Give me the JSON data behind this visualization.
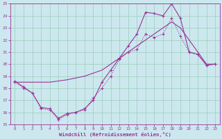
{
  "xlabel": "Windchill (Refroidissement éolien,°C)",
  "bg_color": "#cce8ee",
  "grid_color": "#99ccbb",
  "line_color": "#993399",
  "xlim": [
    -0.5,
    23.5
  ],
  "ylim": [
    15,
    25
  ],
  "xticks": [
    0,
    1,
    2,
    3,
    4,
    5,
    6,
    7,
    8,
    9,
    10,
    11,
    12,
    13,
    14,
    15,
    16,
    17,
    18,
    19,
    20,
    21,
    22,
    23
  ],
  "yticks": [
    15,
    16,
    17,
    18,
    19,
    20,
    21,
    22,
    23,
    24,
    25
  ],
  "line1_x": [
    0,
    1,
    2,
    3,
    4,
    5,
    6,
    7,
    8,
    9,
    10,
    11,
    12,
    13,
    14,
    15,
    16,
    17,
    18,
    19,
    20,
    21,
    22,
    23
  ],
  "line1_y": [
    18.5,
    18.0,
    17.6,
    16.3,
    16.2,
    15.4,
    15.8,
    16.0,
    16.2,
    17.2,
    18.0,
    19.0,
    20.4,
    21.0,
    21.2,
    22.5,
    22.2,
    22.5,
    23.8,
    22.3,
    21.0,
    20.8,
    19.9,
    20.0
  ],
  "line2_x": [
    0,
    2,
    4,
    6,
    8,
    10,
    11,
    12,
    13,
    14,
    15,
    16,
    17,
    18,
    19,
    20,
    21,
    22,
    23
  ],
  "line2_y": [
    18.5,
    18.5,
    18.5,
    18.7,
    19.0,
    19.5,
    20.0,
    20.5,
    21.0,
    21.5,
    22.0,
    22.5,
    23.0,
    23.5,
    23.0,
    22.0,
    21.0,
    20.0,
    20.0
  ],
  "line3_x": [
    0,
    1,
    2,
    3,
    4,
    5,
    6,
    7,
    8,
    9,
    10,
    11,
    12,
    13,
    14,
    15,
    16,
    17,
    18,
    19,
    20,
    21,
    22,
    23
  ],
  "line3_y": [
    18.6,
    18.1,
    17.6,
    16.4,
    16.3,
    15.5,
    15.9,
    16.0,
    16.3,
    17.0,
    18.5,
    19.5,
    20.5,
    21.5,
    22.5,
    24.3,
    24.2,
    24.0,
    25.0,
    23.8,
    21.0,
    20.8,
    19.9,
    20.0
  ]
}
